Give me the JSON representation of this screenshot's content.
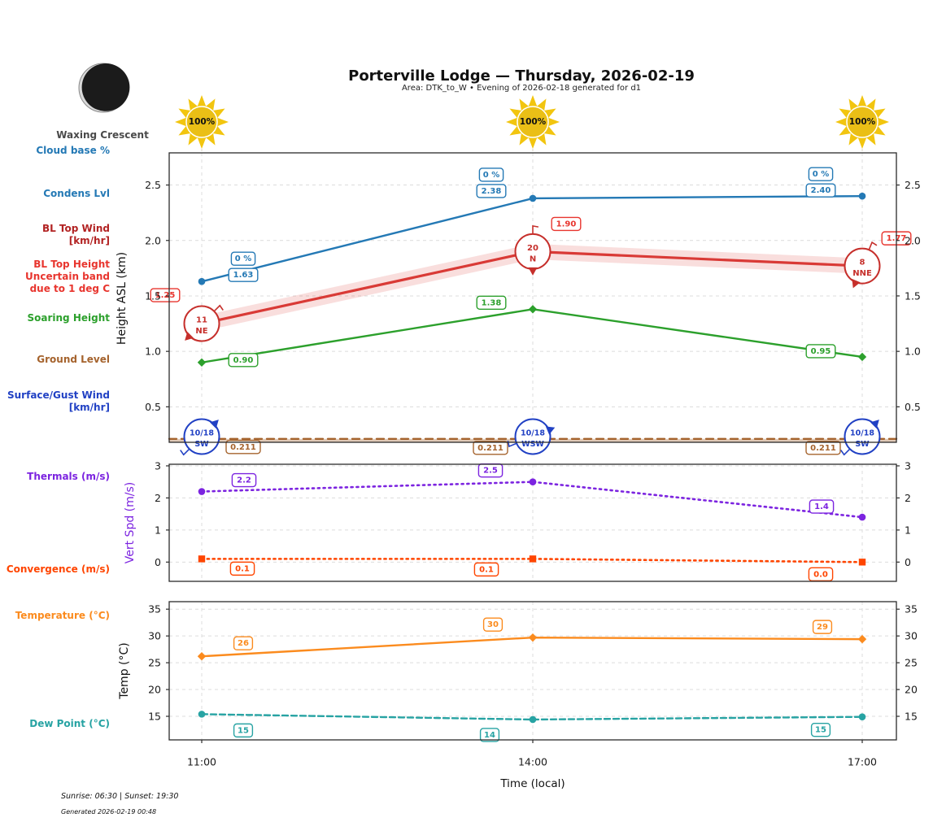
{
  "header": {
    "title": "Porterville Lodge — Thursday, 2026-02-19",
    "subtitle": "Area: DTK_to_W • Evening of 2026-02-18 generated for d1",
    "moon_phase": "Waxing Crescent"
  },
  "xlabel": "Time (local)",
  "times": [
    "11:00",
    "14:00",
    "17:00"
  ],
  "sunshine": [
    "100%",
    "100%",
    "100%"
  ],
  "legend": [
    {
      "lines": [
        "Cloud base %"
      ],
      "color": "#2479b5"
    },
    {
      "lines": [
        "Condens Lvl"
      ],
      "color": "#2479b5"
    },
    {
      "lines": [
        "BL Top Wind",
        "[km/hr]"
      ],
      "color": "#b22222"
    },
    {
      "lines": [
        "BL Top Height",
        "Uncertain band",
        "due to 1 deg C"
      ],
      "color": "#e8352e"
    },
    {
      "lines": [
        "Soaring Height"
      ],
      "color": "#2ca02c"
    },
    {
      "lines": [
        "Ground Level"
      ],
      "color": "#a5632d"
    },
    {
      "lines": [
        "Surface/Gust Wind",
        "[km/hr]"
      ],
      "color": "#2141c4"
    },
    {
      "lines": [
        "Thermals (m/s)"
      ],
      "color": "#7c24e0"
    },
    {
      "lines": [
        "Convergence (m/s)"
      ],
      "color": "#ff4500"
    },
    {
      "lines": [
        "Temperature (°C)"
      ],
      "color": "#fb8b1e"
    },
    {
      "lines": [
        "Dew Point (°C)"
      ],
      "color": "#27a3a3"
    }
  ],
  "footer": {
    "sun_times": "Sunrise: 06:30 | Sunset: 19:30",
    "generated": "Generated 2026-02-19 00:48"
  },
  "chart_data": [
    {
      "type": "line",
      "ylabel": "Height ASL (km)",
      "ylim": [
        0.18,
        2.79
      ],
      "yticks": [
        "0.5",
        "1.0",
        "1.5",
        "2.0",
        "2.5"
      ],
      "ytick_values": [
        0.5,
        1.0,
        1.5,
        2.0,
        2.5
      ],
      "x": [
        "11:00",
        "14:00",
        "17:00"
      ],
      "grid": true,
      "legend_position": "left column",
      "series": [
        {
          "name": "Condens Lvl",
          "color": "#2479b5",
          "line": "solid",
          "marker": "circle",
          "values": [
            1.63,
            2.38,
            2.4
          ],
          "value_labels": [
            "1.63",
            "2.38",
            "2.40"
          ],
          "cloud_base_labels": [
            "0 %",
            "0 %",
            "0 %"
          ]
        },
        {
          "name": "BL Top Height",
          "color": "#d93a36",
          "line": "solid",
          "marker": "none",
          "values": [
            1.25,
            1.9,
            1.77
          ],
          "value_labels": [
            "1.25",
            "1.90",
            "1.77"
          ],
          "uncertainty_band_km": 0.07,
          "wind_kmh": [
            {
              "speed": "11",
              "dir": "NE"
            },
            {
              "speed": "20",
              "dir": "N"
            },
            {
              "speed": "8",
              "dir": "NNE"
            }
          ]
        },
        {
          "name": "Soaring Height",
          "color": "#2ca02c",
          "line": "solid",
          "marker": "diamond",
          "values": [
            0.9,
            1.38,
            0.95
          ],
          "value_labels": [
            "0.90",
            "1.38",
            "0.95"
          ]
        },
        {
          "name": "Ground Level",
          "color": "#a5632d",
          "line": "dashed",
          "marker": "none",
          "values": [
            0.211,
            0.211,
            0.211
          ],
          "value_labels": [
            "0.211",
            "0.211",
            "0.211"
          ],
          "fill_below": true
        },
        {
          "name": "Surface/Gust Wind",
          "color": "#2141c4",
          "line": "none",
          "marker": "wind-circle",
          "wind_kmh": [
            {
              "speed": "10/18",
              "dir": "SW"
            },
            {
              "speed": "10/18",
              "dir": "WSW"
            },
            {
              "speed": "10/18",
              "dir": "SW"
            }
          ]
        }
      ]
    },
    {
      "type": "line",
      "ylabel": "Vert Spd (m/s)",
      "ylim": [
        -0.6,
        3.05
      ],
      "yticks": [
        "0",
        "1",
        "2",
        "3"
      ],
      "ytick_values": [
        0,
        1,
        2,
        3
      ],
      "x": [
        "11:00",
        "14:00",
        "17:00"
      ],
      "grid": true,
      "series": [
        {
          "name": "Thermals",
          "color": "#7c24e0",
          "line": "dotted",
          "marker": "circle",
          "values": [
            2.2,
            2.5,
            1.4
          ],
          "value_labels": [
            "2.2",
            "2.5",
            "1.4"
          ]
        },
        {
          "name": "Convergence",
          "color": "#ff4500",
          "line": "dotted",
          "marker": "square",
          "values": [
            0.1,
            0.1,
            0.0
          ],
          "value_labels": [
            "0.1",
            "0.1",
            "0.0"
          ]
        }
      ]
    },
    {
      "type": "line",
      "ylabel": "Temp (°C)",
      "ylim": [
        10.6,
        36.4
      ],
      "yticks": [
        "15",
        "20",
        "25",
        "30",
        "35"
      ],
      "ytick_values": [
        15,
        20,
        25,
        30,
        35
      ],
      "x": [
        "11:00",
        "14:00",
        "17:00"
      ],
      "grid": true,
      "series": [
        {
          "name": "Temperature",
          "color": "#fb8b1e",
          "line": "solid",
          "marker": "diamond",
          "values": [
            26.2,
            29.7,
            29.4
          ],
          "value_labels": [
            "26",
            "30",
            "29"
          ]
        },
        {
          "name": "Dew Point",
          "color": "#27a3a3",
          "line": "dashed",
          "marker": "circle",
          "values": [
            15.4,
            14.4,
            14.9
          ],
          "value_labels": [
            "15",
            "14",
            "15"
          ]
        }
      ]
    }
  ]
}
